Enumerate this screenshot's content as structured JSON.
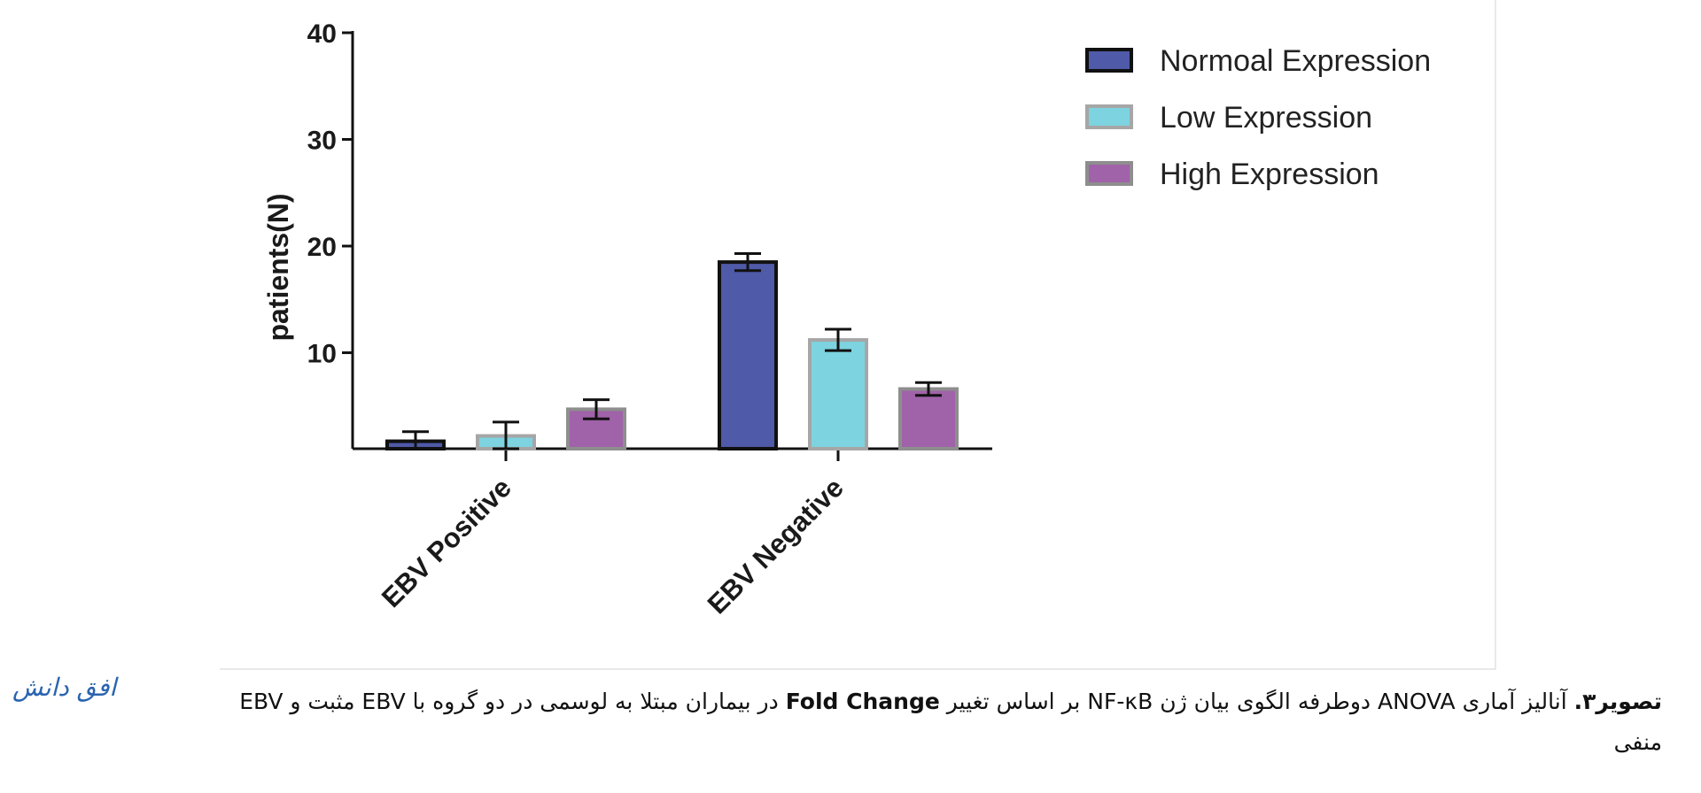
{
  "chart_data": {
    "type": "bar",
    "title": "",
    "xlabel": "",
    "ylabel": "patients(N)",
    "ylim": [
      1,
      40
    ],
    "yticks": [
      10,
      20,
      30,
      40
    ],
    "categories": [
      "EBV Positive",
      "EBV Negative"
    ],
    "series": [
      {
        "name": "Normoal Expression",
        "values": [
          1.7,
          18.5
        ],
        "error": [
          0.9,
          0.8
        ],
        "color": "#4f5aa8"
      },
      {
        "name": "Low Expression",
        "values": [
          2.2,
          11.2
        ],
        "error": [
          1.3,
          1.0
        ],
        "color": "#7dd3df"
      },
      {
        "name": "High Expression",
        "values": [
          4.7,
          6.6
        ],
        "error": [
          0.9,
          0.6
        ],
        "color": "#a062a8"
      }
    ],
    "legend_position": "top-right",
    "grid": false
  },
  "caption": {
    "figure_label": "تصویر۳.",
    "line1_text": " آنالیز آماری ANOVA دوطرفه الگوی بیان ژن NF-κB بر اساس تغییر ",
    "bold_term": "Fold Change",
    "line1_text_end": " در بیماران مبتلا به لوسمی در دو گروه با EBV مثبت و EBV",
    "line2": "منفی"
  },
  "watermark": "افق دانش"
}
